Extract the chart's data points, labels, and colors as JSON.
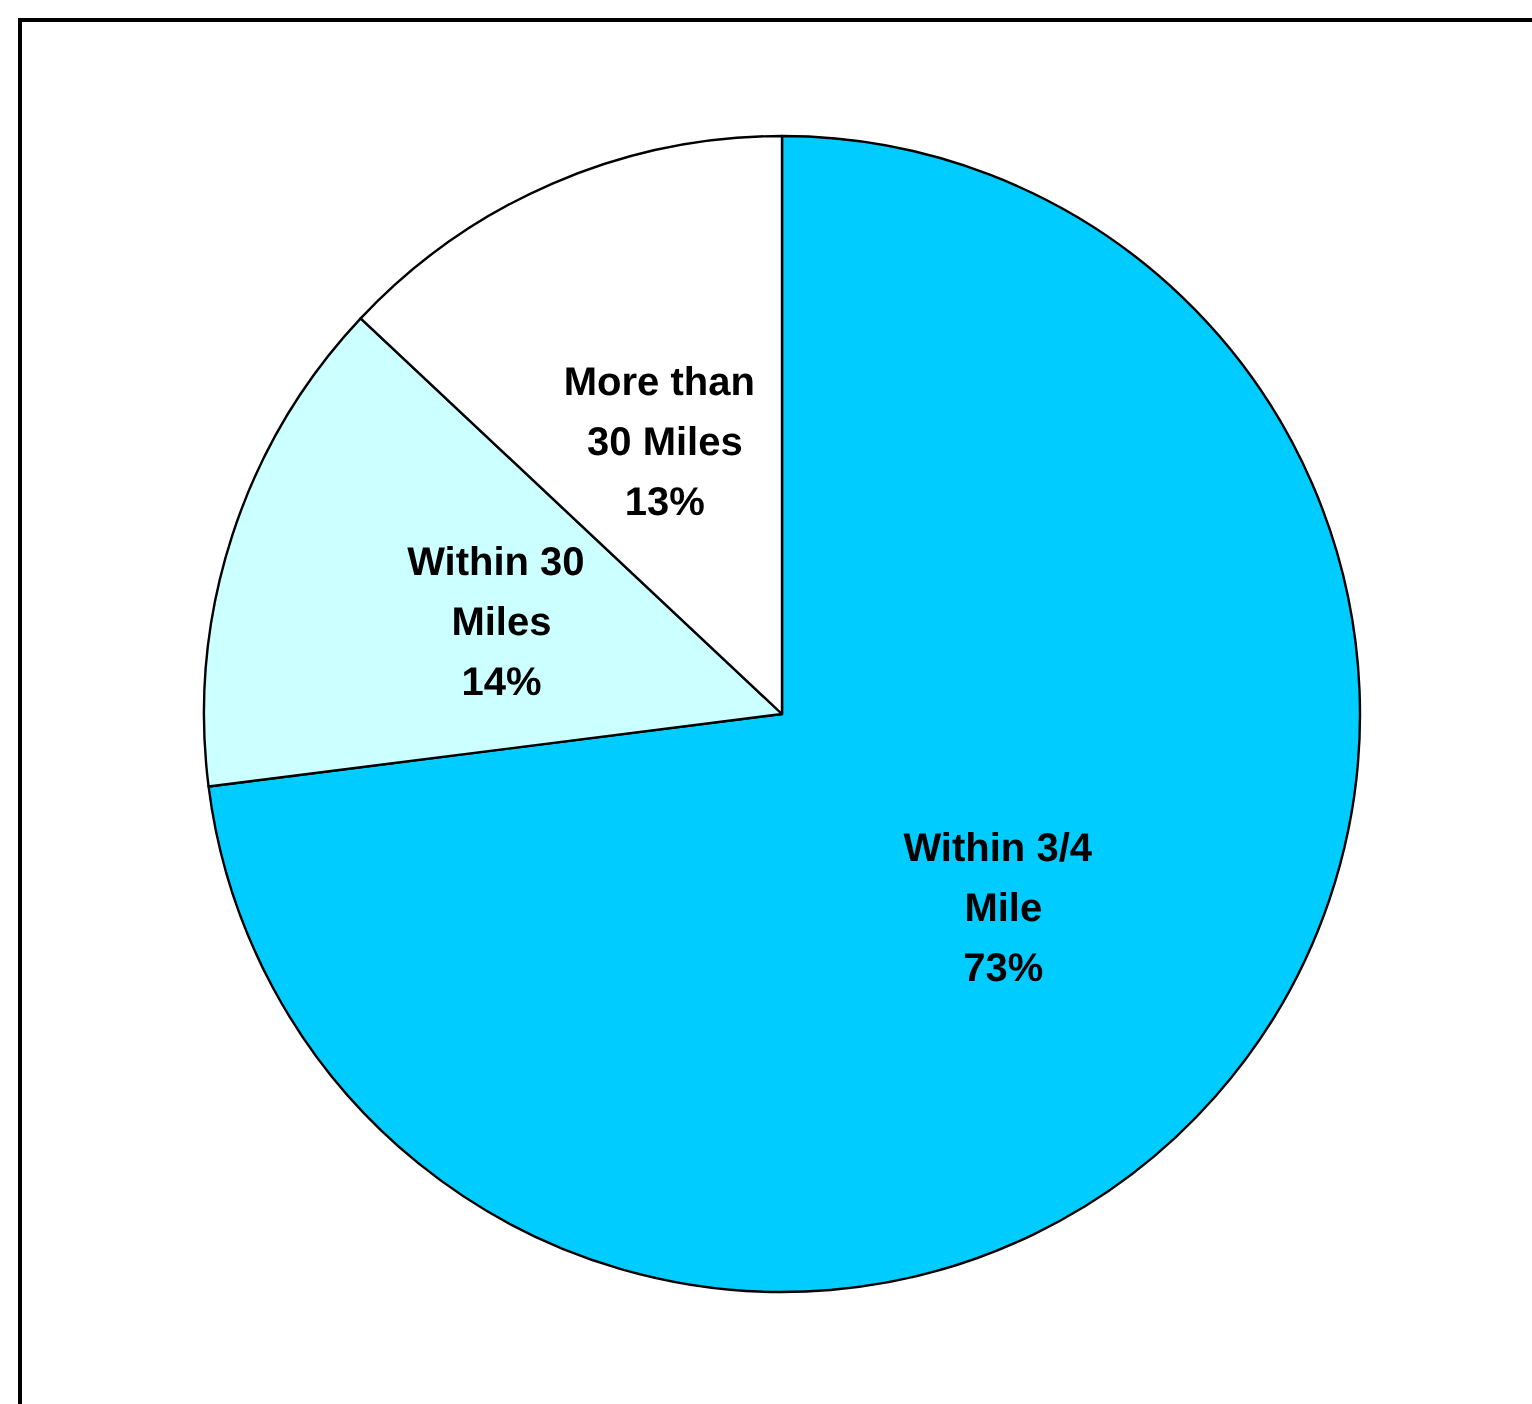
{
  "chart_data": {
    "type": "pie",
    "categories": [
      "Within 3/4 Mile",
      "Within 30 Miles",
      "More than 30 Miles"
    ],
    "values": [
      73,
      14,
      13
    ],
    "colors": [
      "#00ccff",
      "#ccffff",
      "#ffffff"
    ],
    "value_labels": [
      "73%",
      "14%",
      "13%"
    ],
    "legend": false
  }
}
